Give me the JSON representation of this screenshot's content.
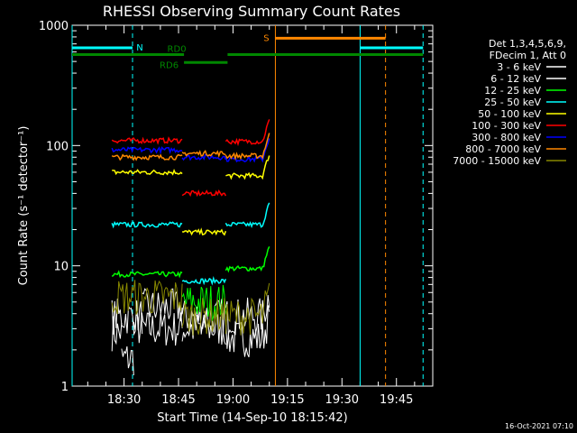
{
  "chart_data": {
    "type": "line",
    "title": "RHESSI Observing Summary Count Rates",
    "xlabel": "Start Time (14-Sep-10 18:15:42)",
    "ylabel": "Count Rate (s⁻¹ detector⁻¹)",
    "y_scale": "log",
    "ylim": [
      1,
      1000
    ],
    "y_ticks": [
      {
        "value": 1,
        "label": "1"
      },
      {
        "value": 10,
        "label": "10"
      },
      {
        "value": 100,
        "label": "100"
      },
      {
        "value": 1000,
        "label": "1000"
      }
    ],
    "xlim": [
      "18:15:42",
      "19:55:00"
    ],
    "x_ticks": [
      "18:30",
      "18:45",
      "19:00",
      "19:15",
      "19:30",
      "19:45"
    ],
    "legend_header": [
      "Det 1,3,4,5,6,9,",
      "FDecim 1, Att 0"
    ],
    "legend_position": "right",
    "footer_date": "16-Oct-2021 07:10",
    "series": [
      {
        "name": "3 - 6 keV",
        "color": "#ffffff",
        "segments": [
          {
            "start": "18:26:40",
            "end": "18:29:20",
            "level": 2.8
          },
          {
            "start": "18:29:20",
            "end": "18:32:40",
            "level": 1.7
          },
          {
            "start": "18:32:40",
            "end": "18:46:00",
            "level": 3.0
          },
          {
            "start": "18:46:00",
            "end": "18:58:00",
            "level": 3.0
          },
          {
            "start": "18:58:00",
            "end": "19:10:00",
            "level": 2.5
          }
        ]
      },
      {
        "name": "6 - 12 keV",
        "color": "#ffffff",
        "segments": [
          {
            "start": "18:26:40",
            "end": "18:35:00",
            "level": 3.8
          },
          {
            "start": "18:35:00",
            "end": "18:46:00",
            "level": 4.5
          },
          {
            "start": "18:46:00",
            "end": "18:58:00",
            "level": 3.8
          },
          {
            "start": "18:58:00",
            "end": "19:10:00",
            "level": 3.8
          }
        ]
      },
      {
        "name": "12 - 25 keV",
        "color": "#00ff00",
        "segments": [
          {
            "start": "18:26:40",
            "end": "18:46:00",
            "level": 8.5
          },
          {
            "start": "18:46:00",
            "end": "18:58:00",
            "level": 5.0
          },
          {
            "start": "18:58:00",
            "end": "19:10:00",
            "level": 9.5
          }
        ]
      },
      {
        "name": "25 - 50 keV",
        "color": "#00ffff",
        "segments": [
          {
            "start": "18:26:40",
            "end": "18:46:00",
            "level": 22
          },
          {
            "start": "18:46:00",
            "end": "18:58:00",
            "level": 7.5
          },
          {
            "start": "18:58:00",
            "end": "19:10:00",
            "level": 22
          }
        ]
      },
      {
        "name": "50 - 100 keV",
        "color": "#ffff00",
        "segments": [
          {
            "start": "18:26:40",
            "end": "18:46:00",
            "level": 60
          },
          {
            "start": "18:46:00",
            "end": "18:58:00",
            "level": 19
          },
          {
            "start": "18:58:00",
            "end": "19:10:00",
            "level": 56
          }
        ]
      },
      {
        "name": "100 - 300 keV",
        "color": "#ff0000",
        "segments": [
          {
            "start": "18:26:40",
            "end": "18:46:00",
            "level": 110
          },
          {
            "start": "18:46:00",
            "end": "18:58:00",
            "level": 40
          },
          {
            "start": "18:58:00",
            "end": "19:10:00",
            "level": 108
          }
        ]
      },
      {
        "name": "300 - 800 keV",
        "color": "#0000ff",
        "segments": [
          {
            "start": "18:26:40",
            "end": "18:46:00",
            "level": 92
          },
          {
            "start": "18:46:00",
            "end": "18:58:00",
            "level": 80
          },
          {
            "start": "18:58:00",
            "end": "19:10:00",
            "level": 77
          }
        ]
      },
      {
        "name": "800 - 7000 keV",
        "color": "#ff8800",
        "segments": [
          {
            "start": "18:26:40",
            "end": "18:46:00",
            "level": 80
          },
          {
            "start": "18:46:00",
            "end": "18:58:00",
            "level": 86
          },
          {
            "start": "18:58:00",
            "end": "19:10:00",
            "level": 82
          }
        ]
      },
      {
        "name": "7000 - 15000 keV",
        "color": "#888800",
        "segments": [
          {
            "start": "18:26:40",
            "end": "18:46:00",
            "level": 5.5
          },
          {
            "start": "18:46:00",
            "end": "18:58:00",
            "level": 3.8
          },
          {
            "start": "18:58:00",
            "end": "19:10:00",
            "level": 3.8
          }
        ]
      }
    ],
    "markers": [
      {
        "label": "N",
        "color": "#00ffff",
        "start": "18:15:42",
        "end": "18:32:20",
        "level": 650
      },
      {
        "label": "",
        "color": "#00ffff",
        "start": "19:35:00",
        "end": "19:52:20",
        "level": 650
      },
      {
        "label": "S",
        "color": "#ff8800",
        "start": "19:11:40",
        "end": "19:42:00",
        "level": 780
      },
      {
        "label": "RD0",
        "color": "#008800",
        "start": "18:15:42",
        "end": "18:46:30",
        "level": 570
      },
      {
        "label": "RD6",
        "color": "#008800",
        "start": "18:46:30",
        "end": "18:58:30",
        "level": 490
      },
      {
        "label": "",
        "color": "#008800",
        "start": "18:58:30",
        "end": "19:52:20",
        "level": 570
      }
    ],
    "vertical_lines": [
      {
        "time": "18:15:42",
        "color": "#00ffff",
        "style": "solid"
      },
      {
        "time": "18:32:20",
        "color": "#00ffff",
        "style": "dashed"
      },
      {
        "time": "19:11:40",
        "color": "#ff8800",
        "style": "solid"
      },
      {
        "time": "19:35:00",
        "color": "#00ffff",
        "style": "solid"
      },
      {
        "time": "19:42:00",
        "color": "#ff8800",
        "style": "dashed"
      },
      {
        "time": "19:52:20",
        "color": "#00ffff",
        "style": "dashed"
      }
    ]
  }
}
